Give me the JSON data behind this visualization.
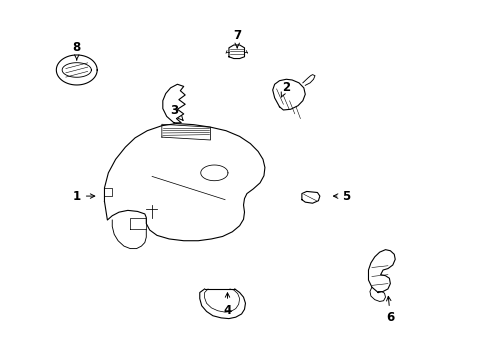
{
  "background_color": "#ffffff",
  "fig_width": 4.89,
  "fig_height": 3.6,
  "dpi": 100,
  "lw": 0.8,
  "parts_labels": [
    [
      1,
      0.155,
      0.455,
      0.2,
      0.455
    ],
    [
      2,
      0.585,
      0.76,
      0.575,
      0.73
    ],
    [
      3,
      0.355,
      0.695,
      0.375,
      0.665
    ],
    [
      4,
      0.465,
      0.135,
      0.465,
      0.195
    ],
    [
      5,
      0.71,
      0.455,
      0.675,
      0.455
    ],
    [
      6,
      0.8,
      0.115,
      0.795,
      0.185
    ],
    [
      7,
      0.485,
      0.905,
      0.485,
      0.86
    ],
    [
      8,
      0.155,
      0.87,
      0.155,
      0.835
    ]
  ]
}
